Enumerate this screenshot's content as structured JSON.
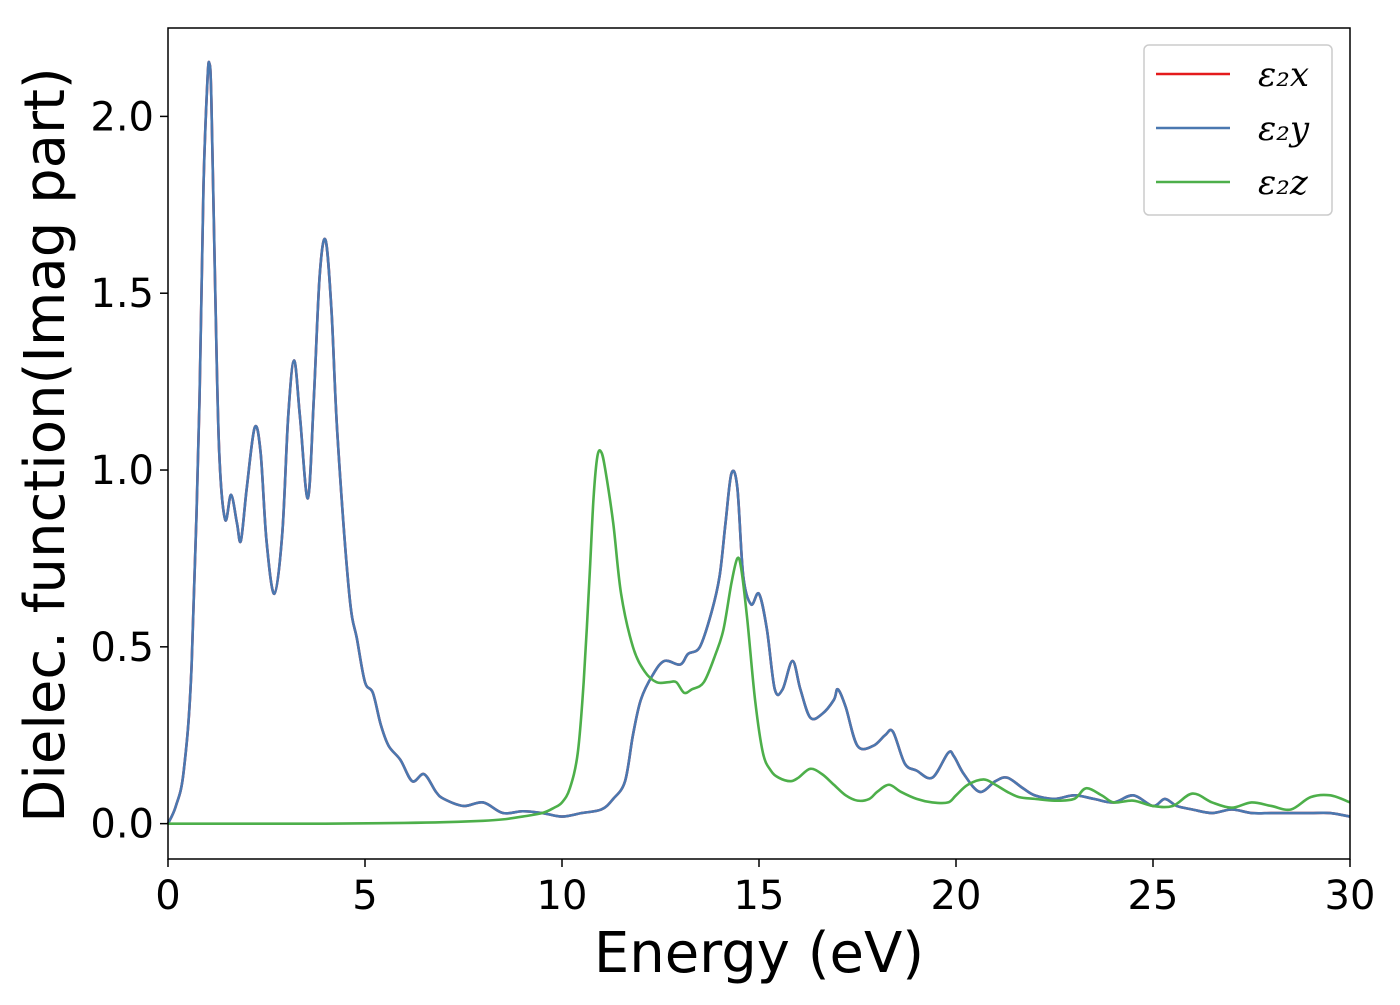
{
  "chart_data": {
    "type": "line",
    "title": "",
    "xlabel": "Energy (eV)",
    "ylabel": "Dielec. function(Imag part)",
    "xlim": [
      0,
      30
    ],
    "ylim": [
      -0.1,
      2.25
    ],
    "xticks": [
      0,
      5,
      10,
      15,
      20,
      25,
      30
    ],
    "xtick_labels": [
      "0",
      "5",
      "10",
      "15",
      "20",
      "25",
      "30"
    ],
    "yticks": [
      0.0,
      0.5,
      1.0,
      1.5,
      2.0
    ],
    "ytick_labels": [
      "0.0",
      "0.5",
      "1.0",
      "1.5",
      "2.0"
    ],
    "grid": false,
    "legend_position": "top-right",
    "series": [
      {
        "name": "ε2x",
        "legend_label": "ε₂x",
        "color": "#e41a1c",
        "x": [
          0,
          0.2,
          0.4,
          0.6,
          0.8,
          0.9,
          1.0,
          1.05,
          1.1,
          1.2,
          1.3,
          1.45,
          1.6,
          1.75,
          1.85,
          2.0,
          2.2,
          2.35,
          2.5,
          2.7,
          2.9,
          3.05,
          3.2,
          3.35,
          3.55,
          3.7,
          3.85,
          4.0,
          4.15,
          4.3,
          4.6,
          4.8,
          5.0,
          5.2,
          5.4,
          5.6,
          5.9,
          6.2,
          6.5,
          6.8,
          7.0,
          7.5,
          8.0,
          8.5,
          9.0,
          9.5,
          10.0,
          10.5,
          11.0,
          11.3,
          11.6,
          11.8,
          12.0,
          12.3,
          12.6,
          13.0,
          13.2,
          13.5,
          13.8,
          14.0,
          14.15,
          14.3,
          14.45,
          14.6,
          14.8,
          15.0,
          15.2,
          15.4,
          15.6,
          15.85,
          16.05,
          16.3,
          16.6,
          16.9,
          17.0,
          17.2,
          17.5,
          17.9,
          18.2,
          18.4,
          18.7,
          19.0,
          19.4,
          19.8,
          19.95,
          20.2,
          20.6,
          21.0,
          21.3,
          21.7,
          22.0,
          22.5,
          23.0,
          23.5,
          24.0,
          24.5,
          25.0,
          25.3,
          25.6,
          26.0,
          26.5,
          27.0,
          27.5,
          28.0,
          28.5,
          29.0,
          29.5,
          30.0
        ],
        "y": [
          0.0,
          0.05,
          0.15,
          0.45,
          1.2,
          1.8,
          2.1,
          2.15,
          2.05,
          1.5,
          1.05,
          0.86,
          0.93,
          0.85,
          0.8,
          0.95,
          1.12,
          1.05,
          0.8,
          0.65,
          0.82,
          1.15,
          1.31,
          1.15,
          0.92,
          1.2,
          1.55,
          1.65,
          1.45,
          1.1,
          0.65,
          0.52,
          0.4,
          0.37,
          0.28,
          0.22,
          0.18,
          0.12,
          0.14,
          0.09,
          0.07,
          0.05,
          0.06,
          0.03,
          0.035,
          0.03,
          0.02,
          0.03,
          0.04,
          0.07,
          0.12,
          0.25,
          0.35,
          0.42,
          0.46,
          0.45,
          0.48,
          0.5,
          0.6,
          0.7,
          0.85,
          0.99,
          0.95,
          0.7,
          0.62,
          0.65,
          0.55,
          0.38,
          0.38,
          0.46,
          0.38,
          0.3,
          0.31,
          0.35,
          0.38,
          0.33,
          0.22,
          0.22,
          0.25,
          0.26,
          0.17,
          0.15,
          0.13,
          0.2,
          0.19,
          0.14,
          0.09,
          0.12,
          0.13,
          0.1,
          0.08,
          0.07,
          0.08,
          0.07,
          0.06,
          0.08,
          0.05,
          0.07,
          0.05,
          0.04,
          0.03,
          0.04,
          0.03,
          0.03,
          0.03,
          0.03,
          0.03,
          0.02
        ]
      },
      {
        "name": "ε2y",
        "legend_label": "ε₂y",
        "color": "#4a78b0",
        "x": [
          0,
          0.2,
          0.4,
          0.6,
          0.8,
          0.9,
          1.0,
          1.05,
          1.1,
          1.2,
          1.3,
          1.45,
          1.6,
          1.75,
          1.85,
          2.0,
          2.2,
          2.35,
          2.5,
          2.7,
          2.9,
          3.05,
          3.2,
          3.35,
          3.55,
          3.7,
          3.85,
          4.0,
          4.15,
          4.3,
          4.6,
          4.8,
          5.0,
          5.2,
          5.4,
          5.6,
          5.9,
          6.2,
          6.5,
          6.8,
          7.0,
          7.5,
          8.0,
          8.5,
          9.0,
          9.5,
          10.0,
          10.5,
          11.0,
          11.3,
          11.6,
          11.8,
          12.0,
          12.3,
          12.6,
          13.0,
          13.2,
          13.5,
          13.8,
          14.0,
          14.15,
          14.3,
          14.45,
          14.6,
          14.8,
          15.0,
          15.2,
          15.4,
          15.6,
          15.85,
          16.05,
          16.3,
          16.6,
          16.9,
          17.0,
          17.2,
          17.5,
          17.9,
          18.2,
          18.4,
          18.7,
          19.0,
          19.4,
          19.8,
          19.95,
          20.2,
          20.6,
          21.0,
          21.3,
          21.7,
          22.0,
          22.5,
          23.0,
          23.5,
          24.0,
          24.5,
          25.0,
          25.3,
          25.6,
          26.0,
          26.5,
          27.0,
          27.5,
          28.0,
          28.5,
          29.0,
          29.5,
          30.0
        ],
        "y": [
          0.0,
          0.05,
          0.15,
          0.45,
          1.2,
          1.8,
          2.1,
          2.15,
          2.05,
          1.5,
          1.05,
          0.86,
          0.93,
          0.85,
          0.8,
          0.95,
          1.12,
          1.05,
          0.8,
          0.65,
          0.82,
          1.15,
          1.31,
          1.15,
          0.92,
          1.2,
          1.55,
          1.65,
          1.45,
          1.1,
          0.65,
          0.52,
          0.4,
          0.37,
          0.28,
          0.22,
          0.18,
          0.12,
          0.14,
          0.09,
          0.07,
          0.05,
          0.06,
          0.03,
          0.035,
          0.03,
          0.02,
          0.03,
          0.04,
          0.07,
          0.12,
          0.25,
          0.35,
          0.42,
          0.46,
          0.45,
          0.48,
          0.5,
          0.6,
          0.7,
          0.85,
          0.99,
          0.95,
          0.7,
          0.62,
          0.65,
          0.55,
          0.38,
          0.38,
          0.46,
          0.38,
          0.3,
          0.31,
          0.35,
          0.38,
          0.33,
          0.22,
          0.22,
          0.25,
          0.26,
          0.17,
          0.15,
          0.13,
          0.2,
          0.19,
          0.14,
          0.09,
          0.12,
          0.13,
          0.1,
          0.08,
          0.07,
          0.08,
          0.07,
          0.06,
          0.08,
          0.05,
          0.07,
          0.05,
          0.04,
          0.03,
          0.04,
          0.03,
          0.03,
          0.03,
          0.03,
          0.03,
          0.02
        ]
      },
      {
        "name": "ε2z",
        "legend_label": "ε₂z",
        "color": "#4daf4a",
        "x": [
          0,
          2,
          4,
          6,
          7,
          8,
          8.5,
          9.0,
          9.5,
          9.8,
          10.0,
          10.2,
          10.4,
          10.55,
          10.7,
          10.8,
          10.9,
          11.0,
          11.1,
          11.3,
          11.5,
          11.8,
          12.1,
          12.4,
          12.7,
          12.9,
          13.1,
          13.3,
          13.6,
          13.9,
          14.1,
          14.3,
          14.45,
          14.55,
          14.7,
          14.9,
          15.1,
          15.3,
          15.5,
          15.8,
          16.0,
          16.3,
          16.6,
          16.9,
          17.2,
          17.5,
          17.8,
          18.0,
          18.3,
          18.6,
          19.0,
          19.4,
          19.8,
          20.0,
          20.3,
          20.7,
          21.0,
          21.3,
          21.6,
          22.0,
          22.5,
          23.0,
          23.3,
          23.7,
          24.0,
          24.5,
          25.0,
          25.5,
          26.0,
          26.5,
          27.0,
          27.5,
          28.0,
          28.5,
          29.0,
          29.5,
          30.0
        ],
        "y": [
          0.0,
          0.0,
          0.0,
          0.002,
          0.004,
          0.008,
          0.012,
          0.02,
          0.03,
          0.045,
          0.06,
          0.1,
          0.2,
          0.4,
          0.7,
          0.92,
          1.04,
          1.05,
          1.0,
          0.85,
          0.65,
          0.5,
          0.43,
          0.4,
          0.4,
          0.4,
          0.37,
          0.38,
          0.4,
          0.48,
          0.55,
          0.68,
          0.75,
          0.72,
          0.58,
          0.35,
          0.2,
          0.15,
          0.13,
          0.12,
          0.13,
          0.155,
          0.14,
          0.11,
          0.08,
          0.065,
          0.07,
          0.09,
          0.11,
          0.09,
          0.07,
          0.06,
          0.06,
          0.08,
          0.11,
          0.125,
          0.11,
          0.09,
          0.075,
          0.07,
          0.065,
          0.07,
          0.1,
          0.08,
          0.06,
          0.065,
          0.05,
          0.05,
          0.085,
          0.06,
          0.045,
          0.06,
          0.05,
          0.04,
          0.075,
          0.08,
          0.06
        ]
      }
    ]
  }
}
